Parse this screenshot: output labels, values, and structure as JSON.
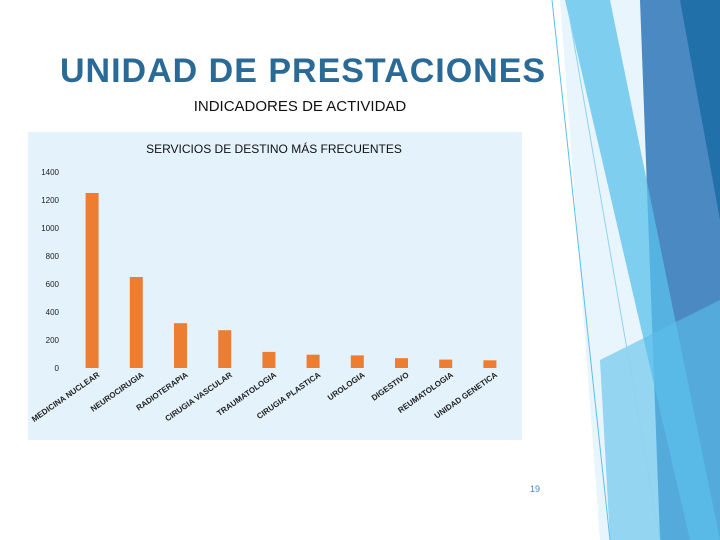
{
  "slide": {
    "title": "UNIDAD DE PRESTACIONES",
    "subtitle": "INDICADORES DE ACTIVIDAD",
    "page_number": "19"
  },
  "colors": {
    "title": "#2a6a96",
    "bar": "#ed7d31",
    "panel": "#e3f2fb",
    "accent_dark": "#1e6ea7",
    "accent_light": "#5bc0eb"
  },
  "chart_data": {
    "type": "bar",
    "title": "SERVICIOS DE DESTINO MÁS FRECUENTES",
    "categories": [
      "MEDICINA NUCLEAR",
      "NEUROCIRUGIA",
      "RADIOTERAPIA",
      "CIRUGIA VASCULAR",
      "TRAUMATOLOGIA",
      "CIRUGIA PLASTICA",
      "UROLOGIA",
      "DIGESTIVO",
      "REUMATOLOGIA",
      "UNIDAD GENETICA"
    ],
    "values": [
      1250,
      650,
      320,
      270,
      115,
      95,
      90,
      70,
      60,
      55
    ],
    "yticks": [
      0,
      200,
      400,
      600,
      800,
      1000,
      1200,
      1400
    ],
    "ylim": [
      0,
      1400
    ],
    "xlabel": "",
    "ylabel": "",
    "grid": false,
    "legend": "none"
  }
}
